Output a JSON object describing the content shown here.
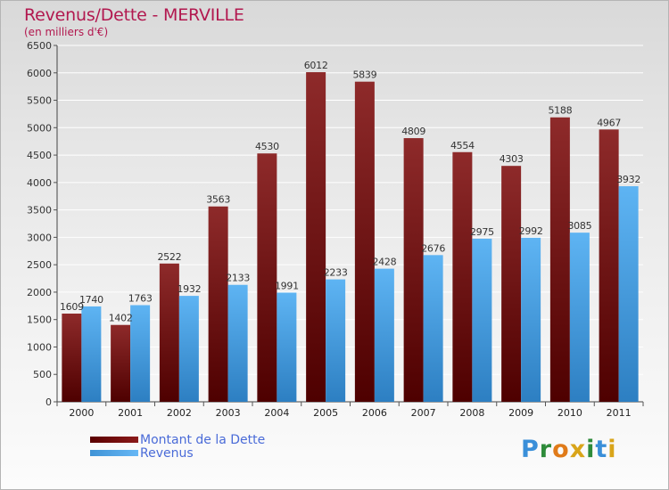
{
  "header": {
    "title": "Revenus/Dette - MERVILLE",
    "subtitle": "(en milliers d'€)"
  },
  "legend": {
    "debt_label": "Montant de la Dette",
    "revenue_label": "Revenus"
  },
  "logo": {
    "text": "Proxiti",
    "letter_colors": [
      "#3a8fd9",
      "#2e8b3a",
      "#e07b1a",
      "#d9a51a",
      "#2e8b3a",
      "#3a8fd9",
      "#d9a51a"
    ]
  },
  "colors": {
    "debt": "#7a1515",
    "revenue": "#4aa3e8",
    "title": "#b2184f"
  },
  "chart_data": {
    "type": "bar",
    "title": "Revenus/Dette - MERVILLE",
    "subtitle": "(en milliers d'€)",
    "categories": [
      "2000",
      "2001",
      "2002",
      "2003",
      "2004",
      "2005",
      "2006",
      "2007",
      "2008",
      "2009",
      "2010",
      "2011"
    ],
    "series": [
      {
        "name": "Montant de la Dette",
        "values": [
          1609,
          1402,
          2522,
          3563,
          4530,
          6012,
          5839,
          4809,
          4554,
          4303,
          5188,
          4967
        ]
      },
      {
        "name": "Revenus",
        "values": [
          1740,
          1763,
          1932,
          2133,
          1991,
          2233,
          2428,
          2676,
          2975,
          2992,
          3085,
          3932
        ]
      }
    ],
    "ylim": [
      0,
      6500
    ],
    "yticks": [
      0,
      500,
      1000,
      1500,
      2000,
      2500,
      3000,
      3500,
      4000,
      4500,
      5000,
      5500,
      6000,
      6500
    ],
    "grid": true,
    "legend_position": "bottom-left"
  }
}
